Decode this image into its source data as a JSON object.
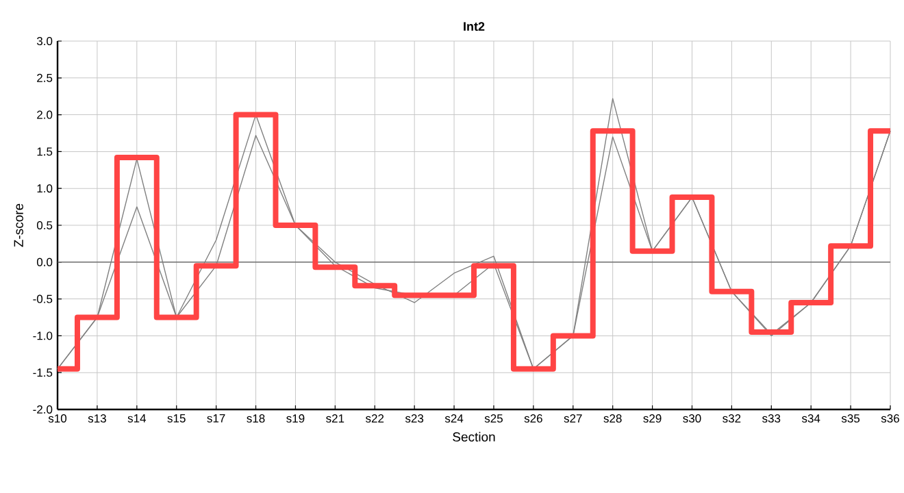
{
  "chart_data": {
    "type": "line",
    "title": "Int2",
    "xlabel": "Section",
    "ylabel": "Z-score",
    "categories": [
      "s10",
      "s13",
      "s14",
      "s15",
      "s17",
      "s18",
      "s19",
      "s21",
      "s22",
      "s23",
      "s24",
      "s25",
      "s26",
      "s27",
      "s28",
      "s29",
      "s30",
      "s32",
      "s33",
      "s34",
      "s35",
      "s36"
    ],
    "series": [
      {
        "color": "#808080",
        "values": [
          -1.45,
          -0.75,
          1.4,
          -0.75,
          0.3,
          2.0,
          0.5,
          0.0,
          -0.3,
          -0.55,
          -0.15,
          0.08,
          -1.45,
          -1.0,
          2.22,
          0.15,
          0.88,
          -0.4,
          -1.0,
          -0.55,
          0.22,
          1.78
        ]
      },
      {
        "color": "#808080",
        "values": [
          -1.45,
          -0.75,
          0.75,
          -0.75,
          -0.05,
          1.72,
          0.5,
          -0.05,
          -0.35,
          -0.45,
          -0.45,
          -0.02,
          -1.45,
          -1.0,
          1.7,
          0.15,
          0.88,
          -0.4,
          -0.98,
          -0.55,
          0.22,
          1.78
        ]
      },
      {
        "type": "step",
        "color": "#ff4444",
        "values": [
          -1.45,
          -0.75,
          1.42,
          -0.75,
          -0.05,
          2.0,
          0.5,
          -0.07,
          -0.32,
          -0.45,
          -0.45,
          -0.05,
          -1.45,
          -1.0,
          1.78,
          0.15,
          0.88,
          -0.4,
          -0.95,
          -0.55,
          0.22,
          1.78
        ]
      }
    ],
    "ylim": [
      -2.0,
      3.0
    ],
    "yticks": [
      {
        "value": -2,
        "label": "-2.0"
      },
      {
        "value": -1.5,
        "label": "-1.5"
      },
      {
        "value": -1,
        "label": "-1.0"
      },
      {
        "value": -0.5,
        "label": "-0.5"
      },
      {
        "value": 0,
        "label": "0.0"
      },
      {
        "value": 0.5,
        "label": "0.5"
      },
      {
        "value": 1,
        "label": "1.0"
      },
      {
        "value": 1.5,
        "label": "1.5"
      },
      {
        "value": 2,
        "label": "2.0"
      },
      {
        "value": 2.5,
        "label": "2.5"
      },
      {
        "value": 3,
        "label": "3.0"
      }
    ],
    "grid": true,
    "marker": "none",
    "line_style": "solid",
    "ref_lines": [
      {
        "axis": "y",
        "value": 0,
        "color": "#707070"
      }
    ]
  }
}
